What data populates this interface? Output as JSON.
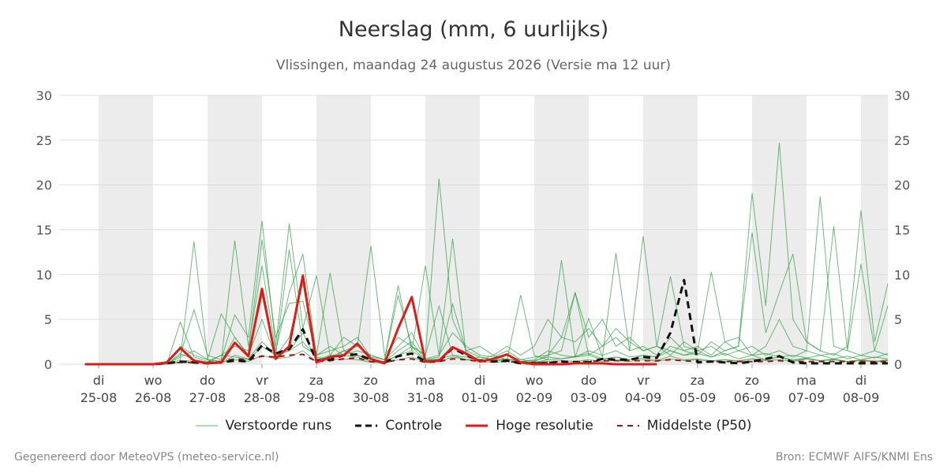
{
  "header": {
    "title": "Neerslag (mm, 6 uurlijks)",
    "subtitle": "Vlissingen, maandag 24 augustus 2026 (Versie ma 12 uur)"
  },
  "legend": {
    "ensemble": "Verstoorde runs",
    "control": "Controle",
    "hires": "Hoge resolutie",
    "median": "Middelste (P50)"
  },
  "footer": {
    "left": "Gegenereerd door MeteoVPS (meteo-service.nl)",
    "right": "Bron: ECMWF AIFS/KNMI Ens"
  },
  "colors": {
    "ensemble": "#2e9e3e",
    "control": "#111111",
    "hires": "#e01a1a",
    "median": "#a01010",
    "shade": "#ececec",
    "grid": "#dddddd"
  },
  "chart_data": {
    "type": "line",
    "title": "Neerslag (mm, 6 uurlijks)",
    "ylim": [
      0,
      30
    ],
    "y_ticks": [
      0,
      5,
      10,
      15,
      20,
      25,
      30
    ],
    "x_unit": "days since 25-08 00h",
    "xlim": [
      -0.25,
      14.5
    ],
    "x_ticks": [
      {
        "day": "di",
        "date": "25-08"
      },
      {
        "day": "wo",
        "date": "26-08"
      },
      {
        "day": "do",
        "date": "27-08"
      },
      {
        "day": "vr",
        "date": "28-08"
      },
      {
        "day": "za",
        "date": "29-08"
      },
      {
        "day": "zo",
        "date": "30-08"
      },
      {
        "day": "ma",
        "date": "31-08"
      },
      {
        "day": "di",
        "date": "01-09"
      },
      {
        "day": "wo",
        "date": "02-09"
      },
      {
        "day": "do",
        "date": "03-09"
      },
      {
        "day": "vr",
        "date": "04-09"
      },
      {
        "day": "za",
        "date": "05-09"
      },
      {
        "day": "zo",
        "date": "06-09"
      },
      {
        "day": "ma",
        "date": "07-09"
      },
      {
        "day": "di",
        "date": "08-09"
      }
    ],
    "shaded_days": [
      0,
      2,
      4,
      6,
      8,
      10,
      12,
      14
    ],
    "grid": true,
    "legend_position": "bottom",
    "series": [
      {
        "name": "Hoge resolutie",
        "x": [
          -0.25,
          0,
          0.25,
          0.5,
          0.75,
          1,
          1.25,
          1.5,
          1.75,
          2,
          2.25,
          2.5,
          2.75,
          3,
          3.25,
          3.5,
          3.75,
          4,
          4.25,
          4.5,
          4.75,
          5,
          5.25,
          5.5,
          5.75,
          6,
          6.25,
          6.5,
          6.75,
          7,
          7.25,
          7.5,
          7.75,
          8,
          8.25,
          8.5,
          8.75,
          9,
          9.25,
          9.5,
          9.75,
          10,
          10.25
        ],
        "y": [
          0,
          0,
          0,
          0,
          0,
          0,
          0.2,
          1.8,
          0.4,
          0.1,
          0.2,
          2.4,
          0.9,
          8.4,
          0.6,
          2.0,
          9.9,
          0.2,
          0.8,
          1.0,
          2.3,
          0.6,
          0.1,
          4.0,
          7.5,
          0.3,
          0.4,
          1.9,
          1.2,
          0.3,
          0.6,
          1.1,
          0.2,
          0,
          0,
          0,
          0.1,
          0.1,
          0.1,
          0,
          0,
          0,
          0
        ]
      },
      {
        "name": "Controle",
        "x": [
          -0.25,
          0,
          0.25,
          0.5,
          0.75,
          1,
          1.25,
          1.5,
          1.75,
          2,
          2.25,
          2.5,
          2.75,
          3,
          3.25,
          3.5,
          3.75,
          4,
          4.25,
          4.5,
          4.75,
          5,
          5.25,
          5.5,
          5.75,
          6,
          6.25,
          6.5,
          6.75,
          7,
          7.25,
          7.5,
          7.75,
          8,
          8.25,
          8.5,
          8.75,
          9,
          9.25,
          9.5,
          9.75,
          10,
          10.25,
          10.5,
          10.75,
          11,
          11.25,
          11.5,
          11.75,
          12,
          12.25,
          12.5,
          12.75,
          13,
          13.25,
          13.5,
          13.75,
          14,
          14.25,
          14.5
        ],
        "y": [
          0,
          0,
          0,
          0,
          0,
          0,
          0.1,
          0.3,
          0.2,
          0.1,
          0.2,
          0.4,
          0.3,
          2.1,
          1.2,
          1.7,
          3.9,
          0.4,
          0.5,
          1.0,
          1.1,
          0.5,
          0.2,
          0.9,
          1.2,
          0.3,
          0.3,
          1.8,
          1.0,
          0.4,
          0.3,
          0.4,
          0.1,
          0.1,
          0.1,
          0.3,
          0.2,
          0.2,
          0.6,
          0.5,
          0.5,
          0.8,
          0.7,
          3.5,
          9.4,
          0.2,
          0.3,
          0.2,
          0.1,
          0.3,
          0.6,
          0.9,
          0.2,
          0.1,
          0.1,
          0.1,
          0.1,
          0.1,
          0.1,
          0.1
        ]
      },
      {
        "name": "Middelste (P50)",
        "x": [
          -0.25,
          0,
          0.25,
          0.5,
          0.75,
          1,
          1.25,
          1.5,
          1.75,
          2,
          2.25,
          2.5,
          2.75,
          3,
          3.25,
          3.5,
          3.75,
          4,
          4.25,
          4.5,
          4.75,
          5,
          5.25,
          5.5,
          5.75,
          6,
          6.25,
          6.5,
          6.75,
          7,
          7.25,
          7.5,
          7.75,
          8,
          8.25,
          8.5,
          8.75,
          9,
          9.25,
          9.5,
          9.75,
          10,
          10.25,
          10.5,
          10.75,
          11,
          11.25,
          11.5,
          11.75,
          12,
          12.25,
          12.5,
          12.75,
          13,
          13.25,
          13.5,
          13.75,
          14,
          14.25,
          14.5
        ],
        "y": [
          0,
          0,
          0,
          0,
          0,
          0,
          0.1,
          0.2,
          0.2,
          0.2,
          0.3,
          0.6,
          0.5,
          0.9,
          0.8,
          1.0,
          1.1,
          0.3,
          0.4,
          0.6,
          0.7,
          0.3,
          0.2,
          0.5,
          0.6,
          0.2,
          0.3,
          0.6,
          0.5,
          0.3,
          0.3,
          0.3,
          0.2,
          0.2,
          0.2,
          0.3,
          0.3,
          0.3,
          0.4,
          0.4,
          0.4,
          0.4,
          0.4,
          0.5,
          0.4,
          0.3,
          0.3,
          0.3,
          0.3,
          0.3,
          0.3,
          0.4,
          0.3,
          0.3,
          0.3,
          0.3,
          0.3,
          0.3,
          0.3,
          0.3
        ]
      }
    ],
    "ensemble": {
      "name": "Verstoorde runs",
      "x_start": -0.25,
      "x_step": 0.25,
      "runs": [
        [
          0,
          0,
          0,
          0,
          0,
          0,
          0,
          1.2,
          0.5,
          0.2,
          0.1,
          1.0,
          0.6,
          2.5,
          1.0,
          1.5,
          2.5,
          0.8,
          0.5,
          1.5,
          1.0,
          0.5,
          0.3,
          1.0,
          1.5,
          0.5,
          0.5,
          2.0,
          1.0,
          0.5,
          0.4,
          0.6,
          0.3,
          0.4,
          0.8,
          0.6,
          0.9,
          1.2,
          0.6,
          0.8,
          0.5,
          0.7,
          0.4,
          0.9,
          0.5,
          0.6,
          0.4,
          0.5,
          0.3,
          0.6,
          0.4,
          0.5,
          0.3,
          0.6,
          0.4,
          0.5,
          0.3,
          0.4,
          0.3,
          0.5
        ],
        [
          0,
          0,
          0,
          0,
          0,
          0,
          0,
          4.7,
          0.8,
          0.3,
          1.0,
          2.0,
          1.5,
          13.9,
          3.0,
          6.8,
          7.0,
          1.0,
          1.5,
          2.0,
          3.0,
          0.8,
          0.5,
          2.0,
          3.5,
          0.6,
          1.0,
          3.5,
          2.0,
          1.0,
          0.8,
          1.5,
          0.5,
          0.3,
          1.0,
          3.0,
          2.5,
          4.0,
          2.0,
          3.0,
          1.5,
          2.0,
          1.0,
          3.0,
          1.5,
          2.0,
          1.0,
          2.5,
          1.5,
          2.0,
          1.0,
          1.5,
          0.8,
          1.5,
          1.0,
          1.2,
          0.6,
          1.0,
          0.7,
          1.2
        ],
        [
          0,
          0,
          0,
          0,
          0,
          0,
          0,
          1.0,
          6.1,
          1.0,
          0.5,
          5.5,
          3.0,
          16.0,
          2.0,
          15.7,
          4.0,
          9.9,
          1.0,
          3.0,
          2.0,
          13.2,
          1.0,
          3.0,
          2.0,
          1.0,
          20.7,
          5.0,
          1.5,
          2.0,
          1.0,
          2.0,
          1.0,
          2.0,
          5.0,
          3.0,
          8.0,
          3.0,
          5.0,
          2.0,
          3.0,
          1.5,
          2.0,
          1.0,
          2.5,
          1.5,
          2.0,
          1.0,
          1.5,
          1.0,
          1.2,
          0.8,
          1.0,
          0.7,
          1.0,
          0.6,
          0.9,
          0.5,
          0.8,
          0.6
        ],
        [
          0,
          0,
          0,
          0,
          0,
          0,
          0,
          0.5,
          13.7,
          0.5,
          0.3,
          13.8,
          2.0,
          11.0,
          1.5,
          8.0,
          12.3,
          1.0,
          10.2,
          1.5,
          2.0,
          1.0,
          0.5,
          8.8,
          1.5,
          11.0,
          1.0,
          14.0,
          1.0,
          0.5,
          1.0,
          0.5,
          7.7,
          1.0,
          0.5,
          11.6,
          0.8,
          5.1,
          0.8,
          12.4,
          1.5,
          14.3,
          2.0,
          1.5,
          1.0,
          1.5,
          0.8,
          1.2,
          0.6,
          1.0,
          0.5,
          0.8,
          0.4,
          0.7,
          0.4,
          0.6,
          0.3,
          0.5,
          0.3,
          0.4
        ],
        [
          0,
          0,
          0,
          0,
          0,
          0,
          0,
          2.0,
          1.0,
          0.5,
          5.6,
          3.0,
          1.0,
          7.6,
          1.0,
          12.8,
          2.0,
          1.0,
          2.0,
          1.0,
          1.5,
          1.0,
          0.5,
          7.7,
          2.0,
          1.0,
          6.5,
          1.0,
          0.5,
          0.8,
          0.5,
          1.0,
          0.5,
          0.8,
          1.0,
          1.5,
          8.0,
          1.0,
          2.0,
          4.0,
          2.5,
          1.5,
          2.0,
          9.8,
          2.0,
          1.5,
          10.3,
          2.5,
          3.0,
          1.0,
          2.0,
          5.0,
          2.0,
          1.5,
          18.7,
          2.0,
          1.5,
          1.0,
          1.5,
          1.0
        ],
        [
          0,
          0,
          0,
          0,
          0,
          0,
          0,
          0.3,
          0.5,
          0.2,
          1.0,
          0.8,
          0.5,
          2.0,
          1.0,
          1.5,
          3.5,
          0.5,
          0.8,
          1.5,
          1.0,
          0.5,
          0.3,
          1.5,
          2.5,
          0.5,
          0.8,
          6.7,
          1.5,
          0.8,
          0.5,
          0.6,
          0.3,
          0.2,
          0.5,
          0.6,
          0.8,
          1.0,
          0.5,
          0.8,
          0.5,
          1.0,
          0.8,
          2.0,
          1.5,
          1.0,
          2.5,
          1.5,
          2.0,
          19.1,
          6.5,
          24.7,
          5.0,
          2.5,
          1.5,
          1.0,
          2.0,
          17.2,
          2.5,
          9.0
        ],
        [
          0,
          0,
          0,
          0,
          0,
          0,
          0,
          0.8,
          1.5,
          0.5,
          0.3,
          3.0,
          1.0,
          5.0,
          0.8,
          3.0,
          9.0,
          0.5,
          1.0,
          1.0,
          0.8,
          0.3,
          0.2,
          1.0,
          2.0,
          0.4,
          0.6,
          1.0,
          0.8,
          0.5,
          0.3,
          0.5,
          0.3,
          0.5,
          1.5,
          1.0,
          0.8,
          1.5,
          1.0,
          1.5,
          0.8,
          1.0,
          0.8,
          1.5,
          1.0,
          1.2,
          0.8,
          1.5,
          2.0,
          14.7,
          3.5,
          8.0,
          12.3,
          2.5,
          1.5,
          15.4,
          1.5,
          11.2,
          1.5,
          6.5
        ],
        [
          0,
          0,
          0,
          0,
          0,
          0,
          0,
          0.2,
          0.3,
          0.1,
          0.2,
          0.5,
          0.3,
          1.0,
          0.6,
          0.8,
          1.5,
          0.3,
          0.5,
          0.6,
          0.5,
          0.2,
          0.1,
          0.5,
          0.8,
          0.2,
          0.3,
          0.8,
          0.5,
          0.3,
          0.2,
          0.3,
          0.2,
          0.2,
          0.3,
          0.4,
          0.3,
          0.5,
          0.3,
          0.4,
          0.3,
          0.5,
          0.3,
          0.6,
          0.4,
          0.5,
          0.3,
          0.5,
          0.4,
          0.6,
          0.5,
          0.8,
          0.5,
          0.6,
          0.4,
          0.5,
          0.3,
          0.4,
          0.3,
          0.4
        ]
      ]
    }
  }
}
